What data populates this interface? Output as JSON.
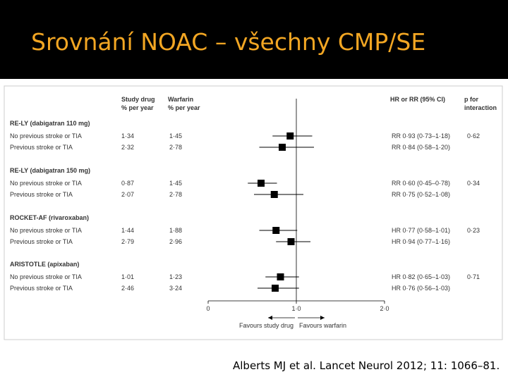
{
  "slide": {
    "title": "Srovnání NOAC – všechny CMP/SE",
    "citation": "Alberts MJ et al. Lancet Neurol 2012; 11: 1066–81.",
    "colors": {
      "header_bg": "#000000",
      "title": "#f2a623",
      "marker": "#000000",
      "panel_border": "#cccccc"
    }
  },
  "chart_data": {
    "type": "forest",
    "columns": {
      "study_drug": [
        "Study drug",
        "% per year"
      ],
      "warfarin": [
        "Warfarin",
        "% per year"
      ],
      "hr": "HR or RR (95% CI)",
      "p_interaction": [
        "p for",
        "interaction"
      ]
    },
    "xlim": [
      0,
      2.0
    ],
    "xticks": [
      {
        "value": 0,
        "label": "0"
      },
      {
        "value": 1.0,
        "label": "1·0"
      },
      {
        "value": 2.0,
        "label": "2·0"
      }
    ],
    "reference_line": 1.0,
    "favours_left": "Favours study drug",
    "favours_right": "Favours warfarin",
    "groups": [
      {
        "title": "RE-LY (dabigatran 110 mg)",
        "p_interaction": "0·62",
        "rows": [
          {
            "label": "No previous stroke or TIA",
            "study": "1·34",
            "warfarin": "1·45",
            "ci_text": "RR 0·93 (0·73–1·18)",
            "estimate": 0.93,
            "lower": 0.73,
            "upper": 1.18
          },
          {
            "label": "Previous stroke or TIA",
            "study": "2·32",
            "warfarin": "2·78",
            "ci_text": "RR 0·84 (0·58–1·20)",
            "estimate": 0.84,
            "lower": 0.58,
            "upper": 1.2
          }
        ]
      },
      {
        "title": "RE-LY (dabigatran 150 mg)",
        "p_interaction": "0·34",
        "rows": [
          {
            "label": "No previous stroke or TIA",
            "study": "0·87",
            "warfarin": "1·45",
            "ci_text": "RR 0·60 (0·45–0·78)",
            "estimate": 0.6,
            "lower": 0.45,
            "upper": 0.78
          },
          {
            "label": "Previous stroke or TIA",
            "study": "2·07",
            "warfarin": "2·78",
            "ci_text": "RR 0·75 (0·52–1·08)",
            "estimate": 0.75,
            "lower": 0.52,
            "upper": 1.08
          }
        ]
      },
      {
        "title": "ROCKET-AF (rivaroxaban)",
        "p_interaction": "0·23",
        "rows": [
          {
            "label": "No previous stroke or TIA",
            "study": "1·44",
            "warfarin": "1·88",
            "ci_text": "HR 0·77 (0·58–1·01)",
            "estimate": 0.77,
            "lower": 0.58,
            "upper": 1.01
          },
          {
            "label": "Previous stroke or TIA",
            "study": "2·79",
            "warfarin": "2·96",
            "ci_text": "HR 0·94 (0·77–1·16)",
            "estimate": 0.94,
            "lower": 0.77,
            "upper": 1.16
          }
        ]
      },
      {
        "title": "ARISTOTLE (apixaban)",
        "p_interaction": "0·71",
        "rows": [
          {
            "label": "No previous stroke or TIA",
            "study": "1·01",
            "warfarin": "1·23",
            "ci_text": "HR 0·82 (0·65–1·03)",
            "estimate": 0.82,
            "lower": 0.65,
            "upper": 1.03
          },
          {
            "label": "Previous stroke or TIA",
            "study": "2·46",
            "warfarin": "3·24",
            "ci_text": "HR 0·76 (0·56–1·03)",
            "estimate": 0.76,
            "lower": 0.56,
            "upper": 1.03
          }
        ]
      }
    ]
  }
}
